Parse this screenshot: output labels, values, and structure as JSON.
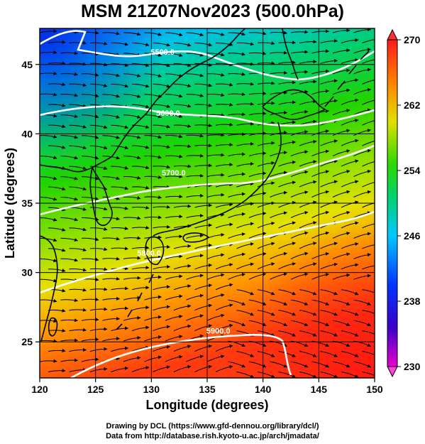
{
  "title": "MSM 21Z07Nov2023 (500.0hPa)",
  "x_axis": {
    "label": "Longitude (degrees)",
    "range": [
      120,
      150
    ],
    "ticks": [
      120,
      125,
      130,
      135,
      140,
      145,
      150
    ]
  },
  "y_axis": {
    "label": "Latitude  (degrees)",
    "range": [
      22.4,
      47.6
    ],
    "ticks": [
      25,
      30,
      35,
      40,
      45
    ]
  },
  "colorbar": {
    "range": [
      230,
      270
    ],
    "ticks": [
      230,
      238,
      246,
      254,
      262,
      270
    ],
    "unit_hint": "temperature (K)",
    "stops": [
      "#e600cf",
      "#3b00c9",
      "#0035ff",
      "#00c8ff",
      "#00d26e",
      "#2fd800",
      "#e0e000",
      "#ff7a00",
      "#ff1a1a"
    ]
  },
  "contour_labels": [
    {
      "text": "5500.0",
      "lon": 131.0,
      "lat": 45.7
    },
    {
      "text": "5600.0",
      "lon": 131.5,
      "lat": 41.3
    },
    {
      "text": "5700.0",
      "lon": 132.0,
      "lat": 37.0
    },
    {
      "text": "5800.0",
      "lon": 129.8,
      "lat": 31.2
    },
    {
      "text": "5900.0",
      "lon": 136.0,
      "lat": 25.6
    }
  ],
  "credits": {
    "line1": "Drawing by DCL (https://www.gfd-dennou.org/library/dcl/)",
    "line2": "Data from http://database.rish.kyoto-u.ac.jp/arch/jmadata/"
  }
}
